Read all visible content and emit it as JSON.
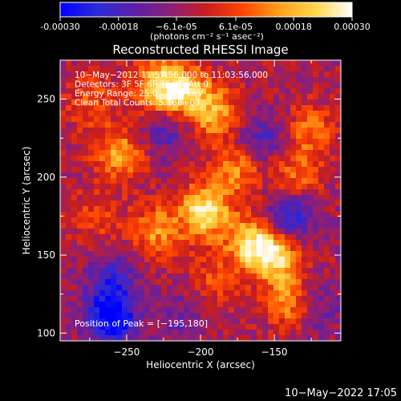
{
  "chart_data": {
    "type": "heatmap",
    "title": "Reconstructed RHESSI Image",
    "xlabel": "Heliocentric X (arcsec)",
    "ylabel": "Heliocentric Y (arcsec)",
    "xlim": [
      -295,
      -105
    ],
    "ylim": [
      95,
      275
    ],
    "x_ticks": [
      -250,
      -200,
      -150
    ],
    "y_ticks": [
      100,
      150,
      200,
      250
    ],
    "colorbar": {
      "min": -0.0003,
      "max": 0.0003,
      "tick_values": [
        -0.0003,
        -0.00018,
        -6.1e-05,
        6.1e-05,
        0.00018,
        0.0003
      ],
      "tick_labels": [
        "-0.00030",
        "-0.00018",
        "−6.1e-05",
        "6.1e-05",
        "0.00018",
        "0.00030"
      ],
      "unit_label": "(photons cm⁻² s⁻¹ asec⁻²)",
      "colors": [
        "#0000ff",
        "#2b2bd8",
        "#5a1fa8",
        "#8a1f7a",
        "#c81e1e",
        "#ff4500",
        "#ff9f1a",
        "#ffd84a",
        "#ffffff"
      ]
    },
    "info_lines": [
      "10−May−2012 11:57:56.000 to 11:03:56.000",
      "Detectors: 3F 5F 6F 7F 8F, Att 0",
      "Energy Range: 25.0 - 50.0 keV",
      "Clean     Total Counts: 5.16E+03"
    ],
    "peak_label": "Position of Peak = [−195,180]",
    "peak": [
      -195,
      180
    ],
    "hotspots": [
      {
        "x": -197,
        "y": 178,
        "value": 0.0003
      },
      {
        "x": -165,
        "y": 158,
        "value": 0.00024
      },
      {
        "x": -150,
        "y": 150,
        "value": 0.00026
      },
      {
        "x": -228,
        "y": 258,
        "value": 0.00025
      },
      {
        "x": -210,
        "y": 255,
        "value": 0.00022
      },
      {
        "x": -190,
        "y": 240,
        "value": 0.0002
      },
      {
        "x": -255,
        "y": 215,
        "value": 0.0002
      },
      {
        "x": -230,
        "y": 165,
        "value": 0.00018
      },
      {
        "x": -175,
        "y": 205,
        "value": 0.00017
      },
      {
        "x": -135,
        "y": 200,
        "value": 0.00015
      },
      {
        "x": -125,
        "y": 230,
        "value": 0.00014
      },
      {
        "x": -140,
        "y": 120,
        "value": 0.00018
      },
      {
        "x": -275,
        "y": 250,
        "value": 0.00012
      },
      {
        "x": -270,
        "y": 175,
        "value": 0.0001
      },
      {
        "x": -190,
        "y": 135,
        "value": 0.0001
      },
      {
        "x": -260,
        "y": 110,
        "value": -0.0003
      },
      {
        "x": -260,
        "y": 135,
        "value": -0.00015
      },
      {
        "x": -160,
        "y": 225,
        "value": -0.00014
      },
      {
        "x": -140,
        "y": 175,
        "value": -0.00022
      },
      {
        "x": -225,
        "y": 230,
        "value": -0.00012
      },
      {
        "x": -120,
        "y": 115,
        "value": -0.0001
      },
      {
        "x": -215,
        "y": 110,
        "value": -8e-05
      }
    ]
  },
  "footer": {
    "timestamp": "10−May−2022 17:05"
  }
}
